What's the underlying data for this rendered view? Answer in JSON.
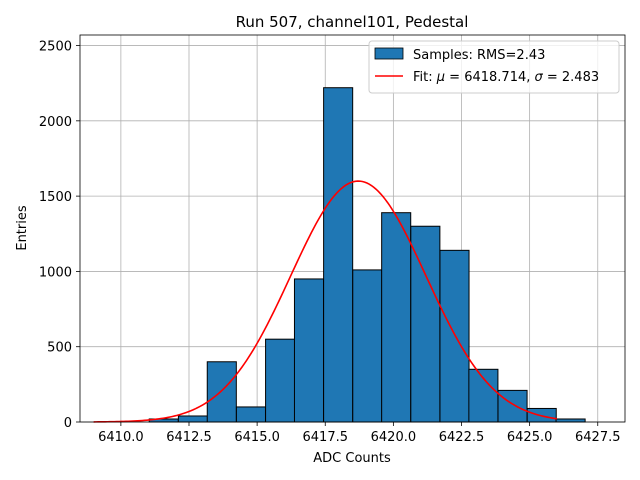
{
  "chart_data": {
    "type": "bar",
    "title": "Run 507, channel101, Pedestal",
    "xlabel": "ADC Counts",
    "ylabel": "Entries",
    "xlim": [
      6408.5,
      6428.5
    ],
    "ylim": [
      0,
      2570
    ],
    "xticks": [
      6410.0,
      6412.5,
      6415.0,
      6417.5,
      6420.0,
      6422.5,
      6425.0,
      6427.5
    ],
    "xtick_labels": [
      "6410.0",
      "6412.5",
      "6415.0",
      "6417.5",
      "6420.0",
      "6422.5",
      "6425.0",
      "6427.5"
    ],
    "yticks": [
      0,
      500,
      1000,
      1500,
      2000,
      2500
    ],
    "ytick_labels": [
      "0",
      "500",
      "1000",
      "1500",
      "2000",
      "2500"
    ],
    "grid": true,
    "legend_position": "top-right",
    "histogram": {
      "name": "Samples: RMS=2.43",
      "color": "#1f77b4",
      "edge_color": "#000000",
      "bin_width": 1.0666,
      "bins": [
        {
          "x0": 6411.04,
          "value": 20
        },
        {
          "x0": 6412.11,
          "value": 40
        },
        {
          "x0": 6413.17,
          "value": 400
        },
        {
          "x0": 6414.24,
          "value": 100
        },
        {
          "x0": 6415.31,
          "value": 550
        },
        {
          "x0": 6416.37,
          "value": 950
        },
        {
          "x0": 6417.44,
          "value": 2220
        },
        {
          "x0": 6418.51,
          "value": 1010
        },
        {
          "x0": 6419.57,
          "value": 1390
        },
        {
          "x0": 6420.64,
          "value": 1300
        },
        {
          "x0": 6421.71,
          "value": 1140
        },
        {
          "x0": 6422.77,
          "value": 350
        },
        {
          "x0": 6423.84,
          "value": 210
        },
        {
          "x0": 6424.91,
          "value": 90
        },
        {
          "x0": 6425.97,
          "value": 20
        }
      ]
    },
    "fit": {
      "name_prefix": "Fit: ",
      "mu_symbol": "μ",
      "sigma_symbol": "σ",
      "mu_text": " = 6418.714, ",
      "sigma_text": " = 2.483",
      "mu": 6418.714,
      "sigma": 2.483,
      "amplitude": 1600,
      "x_range": [
        6409.0,
        6426.0
      ],
      "color": "#ff0000"
    }
  }
}
